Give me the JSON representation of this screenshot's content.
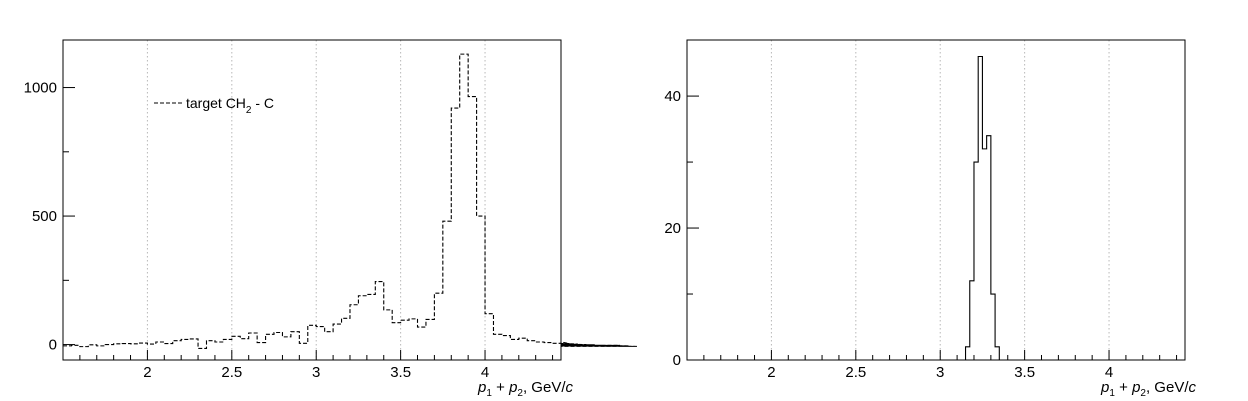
{
  "chart_data": [
    {
      "type": "histogram",
      "line_style": "dashed",
      "xlim": [
        1.5,
        4.45
      ],
      "ylim": [
        -60,
        1185
      ],
      "grid": "vertical-dotted",
      "x_ticks": [
        2,
        2.5,
        3,
        3.5,
        4
      ],
      "x_tick_labels": [
        "2",
        "2.5",
        "3",
        "3.5",
        "4"
      ],
      "y_ticks": [
        0,
        500,
        1000
      ],
      "y_tick_labels": [
        "0",
        "500",
        "1000"
      ],
      "xlabel": {
        "p1": "p",
        "sub1": "1",
        "plus": " + ",
        "p2": "p",
        "sub2": "2",
        "unit": ", GeV/",
        "c": "c"
      },
      "legend": {
        "text": "target CH",
        "sub": "2",
        "suffix": " - C",
        "position": "top-left"
      },
      "bin_start": 1.5,
      "bin_width": 0.05,
      "values": [
        -5,
        -3,
        -8,
        -1,
        -5,
        0,
        3,
        4,
        3,
        6,
        2,
        10,
        4,
        15,
        20,
        22,
        -15,
        15,
        10,
        20,
        32,
        23,
        45,
        8,
        40,
        47,
        30,
        50,
        5,
        75,
        70,
        50,
        80,
        102,
        155,
        190,
        195,
        245,
        135,
        85,
        95,
        100,
        68,
        98,
        200,
        480,
        920,
        1130,
        965,
        500,
        120,
        40,
        35,
        20,
        25,
        15,
        10,
        8,
        5,
        10,
        4,
        2,
        0,
        -1,
        -3,
        -5,
        -3,
        -5,
        -7
      ]
    },
    {
      "type": "histogram",
      "line_style": "solid",
      "xlim": [
        1.5,
        4.45
      ],
      "ylim": [
        0,
        48.5
      ],
      "grid": "vertical-dotted",
      "x_ticks": [
        2,
        2.5,
        3,
        3.5,
        4
      ],
      "x_tick_labels": [
        "2",
        "2.5",
        "3",
        "3.5",
        "4"
      ],
      "y_ticks": [
        0,
        20,
        40
      ],
      "y_tick_labels": [
        "0",
        "20",
        "40"
      ],
      "xlabel": {
        "p1": "p",
        "sub1": "1",
        "plus": " + ",
        "p2": "p",
        "sub2": "2",
        "unit": ", GeV/",
        "c": "c"
      },
      "bin_start": 3.15,
      "bin_width": 0.025,
      "values": [
        2,
        12,
        30,
        46,
        32,
        34,
        10,
        2
      ]
    }
  ]
}
